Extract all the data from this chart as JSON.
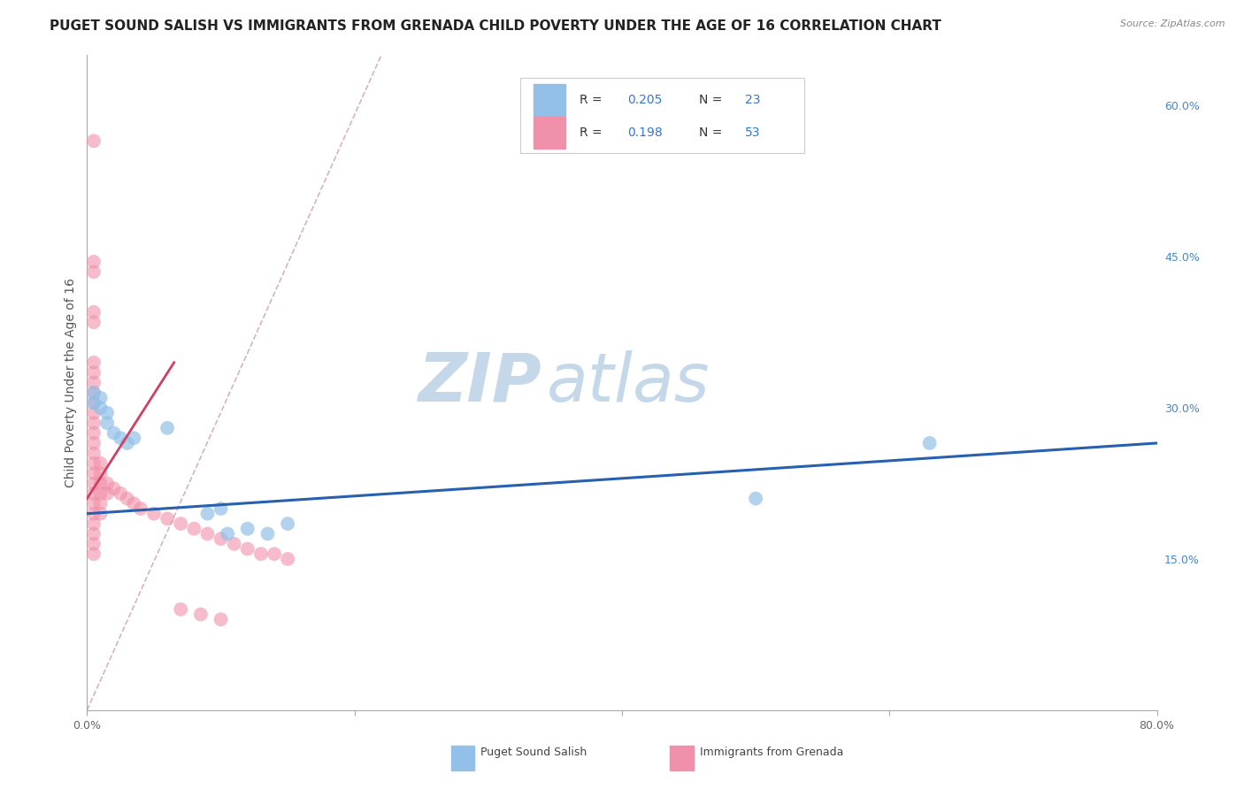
{
  "title": "PUGET SOUND SALISH VS IMMIGRANTS FROM GRENADA CHILD POVERTY UNDER THE AGE OF 16 CORRELATION CHART",
  "source": "Source: ZipAtlas.com",
  "ylabel": "Child Poverty Under the Age of 16",
  "watermark_zip": "ZIP",
  "watermark_atlas": "atlas",
  "x_min": 0.0,
  "x_max": 0.8,
  "y_min": 0.0,
  "y_max": 0.65,
  "y_ticks_right": [
    0.15,
    0.3,
    0.45,
    0.6
  ],
  "y_tick_labels_right": [
    "15.0%",
    "30.0%",
    "45.0%",
    "60.0%"
  ],
  "series1_name": "Puget Sound Salish",
  "series2_name": "Immigrants from Grenada",
  "series1_color": "#92c0e8",
  "series2_color": "#f090aa",
  "series1_scatter": [
    [
      0.005,
      0.315
    ],
    [
      0.005,
      0.305
    ],
    [
      0.01,
      0.31
    ],
    [
      0.01,
      0.3
    ],
    [
      0.015,
      0.295
    ],
    [
      0.015,
      0.285
    ],
    [
      0.02,
      0.275
    ],
    [
      0.025,
      0.27
    ],
    [
      0.03,
      0.265
    ],
    [
      0.035,
      0.27
    ],
    [
      0.06,
      0.28
    ],
    [
      0.09,
      0.195
    ],
    [
      0.1,
      0.2
    ],
    [
      0.105,
      0.175
    ],
    [
      0.12,
      0.18
    ],
    [
      0.135,
      0.175
    ],
    [
      0.15,
      0.185
    ],
    [
      0.5,
      0.21
    ],
    [
      0.63,
      0.265
    ]
  ],
  "series2_scatter": [
    [
      0.005,
      0.565
    ],
    [
      0.005,
      0.445
    ],
    [
      0.005,
      0.435
    ],
    [
      0.005,
      0.395
    ],
    [
      0.005,
      0.385
    ],
    [
      0.005,
      0.345
    ],
    [
      0.005,
      0.335
    ],
    [
      0.005,
      0.325
    ],
    [
      0.005,
      0.315
    ],
    [
      0.005,
      0.305
    ],
    [
      0.005,
      0.295
    ],
    [
      0.005,
      0.285
    ],
    [
      0.005,
      0.275
    ],
    [
      0.005,
      0.265
    ],
    [
      0.005,
      0.255
    ],
    [
      0.005,
      0.245
    ],
    [
      0.005,
      0.235
    ],
    [
      0.005,
      0.225
    ],
    [
      0.005,
      0.215
    ],
    [
      0.005,
      0.205
    ],
    [
      0.005,
      0.195
    ],
    [
      0.005,
      0.185
    ],
    [
      0.005,
      0.175
    ],
    [
      0.005,
      0.165
    ],
    [
      0.005,
      0.155
    ],
    [
      0.01,
      0.245
    ],
    [
      0.01,
      0.235
    ],
    [
      0.01,
      0.225
    ],
    [
      0.01,
      0.215
    ],
    [
      0.01,
      0.205
    ],
    [
      0.01,
      0.195
    ],
    [
      0.015,
      0.225
    ],
    [
      0.015,
      0.215
    ],
    [
      0.02,
      0.22
    ],
    [
      0.025,
      0.215
    ],
    [
      0.03,
      0.21
    ],
    [
      0.035,
      0.205
    ],
    [
      0.04,
      0.2
    ],
    [
      0.05,
      0.195
    ],
    [
      0.06,
      0.19
    ],
    [
      0.07,
      0.185
    ],
    [
      0.08,
      0.18
    ],
    [
      0.09,
      0.175
    ],
    [
      0.1,
      0.17
    ],
    [
      0.11,
      0.165
    ],
    [
      0.12,
      0.16
    ],
    [
      0.13,
      0.155
    ],
    [
      0.14,
      0.155
    ],
    [
      0.15,
      0.15
    ],
    [
      0.07,
      0.1
    ],
    [
      0.085,
      0.095
    ],
    [
      0.1,
      0.09
    ]
  ],
  "series1_trend": [
    [
      0.0,
      0.195
    ],
    [
      0.8,
      0.265
    ]
  ],
  "series2_trend": [
    [
      0.0,
      0.21
    ],
    [
      0.065,
      0.345
    ]
  ],
  "series1_trend_color": "#2860b0",
  "series2_trend_color": "#d04060",
  "refline": [
    [
      0.0,
      0.0
    ],
    [
      0.22,
      0.65
    ]
  ],
  "refline_color": "#d0a0a8",
  "grid_color": "#cccccc",
  "background_color": "#ffffff",
  "title_fontsize": 11,
  "axis_label_fontsize": 10,
  "tick_fontsize": 9,
  "legend_fontsize": 10,
  "watermark_color_zip": "#c5d8ea",
  "watermark_color_atlas": "#c5d8ea",
  "watermark_fontsize": 55
}
